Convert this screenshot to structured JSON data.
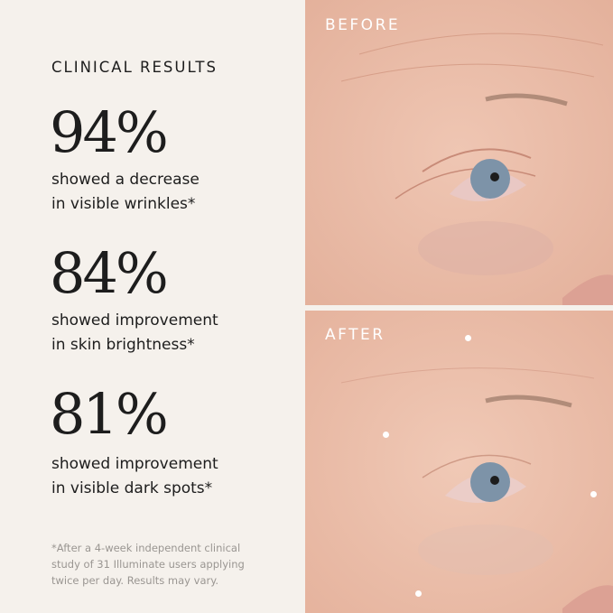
{
  "heading": "CLINICAL RESULTS",
  "stats": [
    {
      "value": "94%",
      "line1": "showed a decrease",
      "line2": "in visible wrinkles*"
    },
    {
      "value": "84%",
      "line1": "showed improvement",
      "line2": "in skin brightness*"
    },
    {
      "value": "81%",
      "line1": "showed improvement",
      "line2": "in visible dark spots*"
    }
  ],
  "footnote": [
    "*After a 4-week independent clinical",
    "study of 31 Illuminate users applying",
    "twice per day. Results may vary."
  ],
  "photos": {
    "before_label": "BEFORE",
    "after_label": "AFTER"
  },
  "colors": {
    "background": "#f5f1ec",
    "text": "#1d1d1d",
    "skin": "#e8b9a4",
    "iris": "#7d93a8"
  }
}
